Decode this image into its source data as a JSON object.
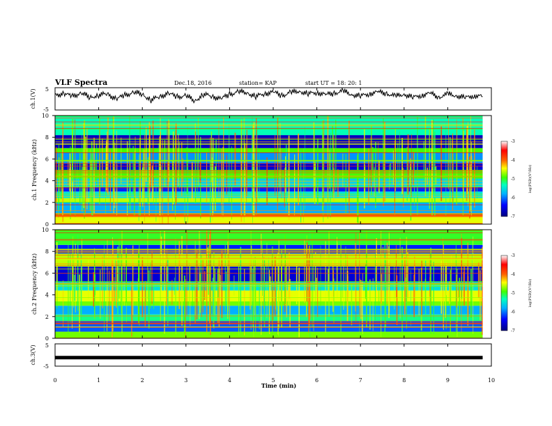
{
  "header": {
    "title": "VLF Spectra",
    "date": "Dec.18, 2016",
    "station": "station= KAP",
    "start": "start UT = 18: 20: 1"
  },
  "chart_data": [
    {
      "type": "line",
      "panel": "ch1-waveform",
      "ylabel": "ch.1(V)",
      "yticks": [
        "5",
        "-5"
      ],
      "ylim": [
        -5,
        5
      ],
      "xlim": [
        0,
        10
      ],
      "x": [
        0,
        0.2,
        0.4,
        0.6,
        0.8,
        1.0,
        1.2,
        1.4,
        1.6,
        1.8,
        2.0,
        2.2,
        2.4,
        2.6,
        2.8,
        3.0,
        3.2,
        3.4,
        3.6,
        3.8,
        4.0,
        4.2,
        4.4,
        4.6,
        4.8,
        5.0,
        5.2,
        5.4,
        5.6,
        5.8,
        6.0,
        6.2,
        6.4,
        6.6,
        6.8,
        7.0,
        7.2,
        7.4,
        7.6,
        7.8,
        8.0,
        8.2,
        8.4,
        8.6,
        8.8,
        9.0,
        9.2,
        9.4,
        9.6,
        9.8
      ],
      "values": [
        1.5,
        2.5,
        1.0,
        2.8,
        0.5,
        1.8,
        2.2,
        0.0,
        1.5,
        3.0,
        2.0,
        -0.5,
        1.0,
        2.5,
        0.8,
        1.5,
        -1.0,
        2.0,
        1.2,
        0.0,
        2.0,
        3.2,
        2.8,
        1.0,
        2.4,
        3.0,
        1.5,
        2.8,
        3.5,
        2.2,
        3.0,
        1.8,
        2.6,
        3.4,
        2.0,
        1.2,
        2.4,
        3.0,
        2.5,
        1.0,
        2.2,
        0.5,
        1.8,
        2.4,
        0.8,
        2.0,
        1.5,
        0.4,
        1.6,
        1.0
      ]
    },
    {
      "type": "heatmap",
      "panel": "ch1-spectrogram",
      "ylabel": "ch.1 Frequency (kHz)",
      "yticks": [
        "0",
        "2",
        "4",
        "6",
        "8",
        "10"
      ],
      "ylim": [
        0,
        10
      ],
      "xlim": [
        0,
        10
      ],
      "bands": [
        {
          "f0": 0,
          "f1": 0.8,
          "level": -4.5
        },
        {
          "f0": 0.8,
          "f1": 1.0,
          "level": -3.8
        },
        {
          "f0": 1.0,
          "f1": 2.0,
          "level": -5.8
        },
        {
          "f0": 2.0,
          "f1": 2.4,
          "level": -4.6
        },
        {
          "f0": 2.4,
          "f1": 3.0,
          "level": -5.5
        },
        {
          "f0": 3.0,
          "f1": 3.4,
          "level": -6.3
        },
        {
          "f0": 3.4,
          "f1": 4.2,
          "level": -5.6
        },
        {
          "f0": 4.2,
          "f1": 5.0,
          "level": -4.9
        },
        {
          "f0": 5.0,
          "f1": 5.6,
          "level": -6.6
        },
        {
          "f0": 5.6,
          "f1": 6.6,
          "level": -5.9
        },
        {
          "f0": 6.6,
          "f1": 7.0,
          "level": -4.9
        },
        {
          "f0": 7.0,
          "f1": 8.2,
          "level": -6.7
        },
        {
          "f0": 8.2,
          "f1": 10,
          "level": -5.3
        }
      ],
      "colorbar": {
        "ticks": [
          "-3",
          "-4",
          "-5",
          "-6",
          "-7"
        ],
        "range": [
          -7,
          -3
        ],
        "label": "log(PSD)(V²/Hz)"
      }
    },
    {
      "type": "heatmap",
      "panel": "ch2-spectrogram",
      "ylabel": "ch.2 Frequency (kHz)",
      "yticks": [
        "0",
        "2",
        "4",
        "6",
        "8",
        "10"
      ],
      "ylim": [
        0,
        10
      ],
      "xlim": [
        0,
        10
      ],
      "bands": [
        {
          "f0": 0,
          "f1": 0.6,
          "level": -4.8
        },
        {
          "f0": 0.6,
          "f1": 1.6,
          "level": -6.1
        },
        {
          "f0": 1.6,
          "f1": 2.2,
          "level": -5.2
        },
        {
          "f0": 2.2,
          "f1": 3.0,
          "level": -5.8
        },
        {
          "f0": 3.0,
          "f1": 3.4,
          "level": -4.8
        },
        {
          "f0": 3.4,
          "f1": 4.4,
          "level": -4.5
        },
        {
          "f0": 4.4,
          "f1": 5.2,
          "level": -5.5
        },
        {
          "f0": 5.2,
          "f1": 6.6,
          "level": -6.6
        },
        {
          "f0": 6.6,
          "f1": 7.8,
          "level": -4.6
        },
        {
          "f0": 7.8,
          "f1": 8.6,
          "level": -6.3
        },
        {
          "f0": 8.6,
          "f1": 10,
          "level": -5.0
        }
      ],
      "colorbar": {
        "ticks": [
          "-3",
          "-4",
          "-5",
          "-6",
          "-7"
        ],
        "range": [
          -7,
          -3
        ],
        "label": "log(PSD)(V²/Hz)"
      }
    },
    {
      "type": "line",
      "panel": "ch3-waveform",
      "ylabel": "ch.3(V)",
      "yticks": [
        "5",
        "-5"
      ],
      "ylim": [
        -5,
        5
      ],
      "xlim": [
        0,
        10
      ],
      "x": [
        0,
        9.8
      ],
      "values": [
        -1.2,
        -1.2
      ]
    }
  ],
  "xaxis": {
    "label": "Time (min)",
    "ticks": [
      "0",
      "1",
      "2",
      "3",
      "4",
      "5",
      "6",
      "7",
      "8",
      "9",
      "10"
    ]
  },
  "colors": {
    "colormap": [
      "#000080",
      "#0000ff",
      "#00b0ff",
      "#00ffc0",
      "#40ff00",
      "#ffff00",
      "#ff6000",
      "#ff0000",
      "#ffffff"
    ]
  }
}
